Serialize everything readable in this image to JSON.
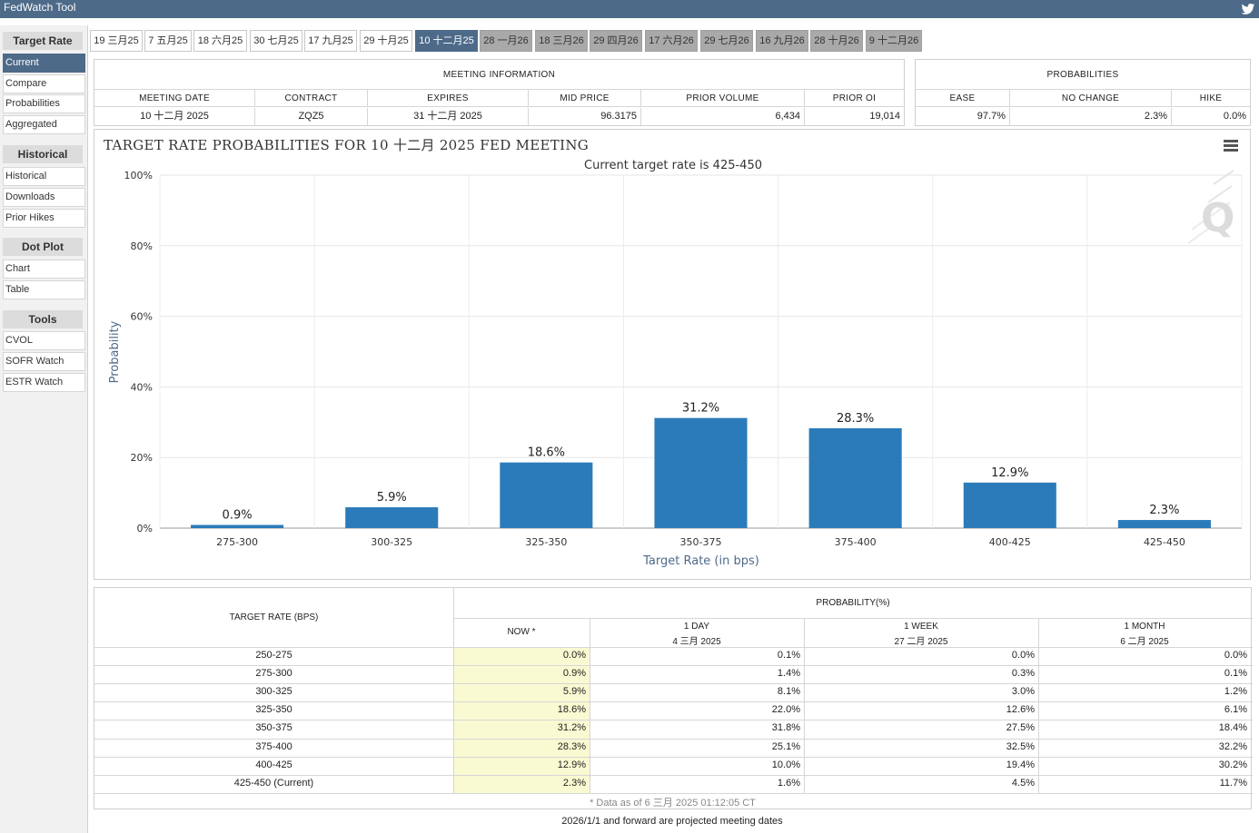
{
  "app": {
    "title": "FedWatch Tool"
  },
  "sidebar": {
    "groups": [
      {
        "heading": "Target Rate",
        "items": [
          {
            "label": "Current",
            "active": true
          },
          {
            "label": "Compare"
          },
          {
            "label": "Probabilities"
          },
          {
            "label": "Aggregated"
          }
        ]
      },
      {
        "heading": "Historical",
        "items": [
          {
            "label": "Historical"
          },
          {
            "label": "Downloads"
          },
          {
            "label": "Prior Hikes"
          }
        ]
      },
      {
        "heading": "Dot Plot",
        "items": [
          {
            "label": "Chart"
          },
          {
            "label": "Table"
          }
        ]
      },
      {
        "heading": "Tools",
        "items": [
          {
            "label": "CVOL"
          },
          {
            "label": "SOFR Watch"
          },
          {
            "label": "ESTR Watch"
          }
        ]
      }
    ]
  },
  "tabs": [
    {
      "label": "19 三月25",
      "state": "past"
    },
    {
      "label": "7 五月25",
      "state": "past"
    },
    {
      "label": "18 六月25",
      "state": "past"
    },
    {
      "label": "30 七月25",
      "state": "past"
    },
    {
      "label": "17 九月25",
      "state": "past"
    },
    {
      "label": "29 十月25",
      "state": "past"
    },
    {
      "label": "10 十二月25",
      "state": "active"
    },
    {
      "label": "28 一月26",
      "state": "future"
    },
    {
      "label": "18 三月26",
      "state": "future"
    },
    {
      "label": "29 四月26",
      "state": "future"
    },
    {
      "label": "17 六月26",
      "state": "future"
    },
    {
      "label": "29 七月26",
      "state": "future"
    },
    {
      "label": "16 九月26",
      "state": "future"
    },
    {
      "label": "28 十月26",
      "state": "future"
    },
    {
      "label": "9 十二月26",
      "state": "future"
    }
  ],
  "meeting_info": {
    "title": "MEETING INFORMATION",
    "headers": [
      "MEETING DATE",
      "CONTRACT",
      "EXPIRES",
      "MID PRICE",
      "PRIOR VOLUME",
      "PRIOR OI"
    ],
    "values": [
      "10 十二月 2025",
      "ZQZ5",
      "31 十二月 2025",
      "96.3175",
      "6,434",
      "19,014"
    ]
  },
  "probabilities_box": {
    "title": "PROBABILITIES",
    "headers": [
      "EASE",
      "NO CHANGE",
      "HIKE"
    ],
    "values": [
      "97.7%",
      "2.3%",
      "0.0%"
    ]
  },
  "chart_data": {
    "type": "bar",
    "title": "TARGET RATE PROBABILITIES FOR 10 十二月 2025 FED MEETING",
    "subtitle": "Current target rate is 425-450",
    "xlabel": "Target Rate (in bps)",
    "ylabel": "Probability",
    "categories": [
      "275-300",
      "300-325",
      "325-350",
      "350-375",
      "375-400",
      "400-425",
      "425-450"
    ],
    "values": [
      0.9,
      5.9,
      18.6,
      31.2,
      28.3,
      12.9,
      2.3
    ],
    "data_labels": [
      "0.9%",
      "5.9%",
      "18.6%",
      "31.2%",
      "28.3%",
      "12.9%",
      "2.3%"
    ],
    "yticks": [
      "0%",
      "20%",
      "40%",
      "60%",
      "80%",
      "100%"
    ],
    "ylim": [
      0,
      100
    ],
    "bar_color": "#2b7bba",
    "grid": true,
    "legend": "none"
  },
  "prob_table": {
    "rate_header": "TARGET RATE (BPS)",
    "group_header": "PROBABILITY(%)",
    "columns": [
      {
        "line1": "NOW *",
        "line2": ""
      },
      {
        "line1": "1 DAY",
        "line2": "4 三月 2025"
      },
      {
        "line1": "1 WEEK",
        "line2": "27 二月 2025"
      },
      {
        "line1": "1 MONTH",
        "line2": "6 二月 2025"
      }
    ],
    "rows": [
      {
        "rate": "250-275",
        "values": [
          "0.0%",
          "0.1%",
          "0.0%",
          "0.0%"
        ]
      },
      {
        "rate": "275-300",
        "values": [
          "0.9%",
          "1.4%",
          "0.3%",
          "0.1%"
        ]
      },
      {
        "rate": "300-325",
        "values": [
          "5.9%",
          "8.1%",
          "3.0%",
          "1.2%"
        ]
      },
      {
        "rate": "325-350",
        "values": [
          "18.6%",
          "22.0%",
          "12.6%",
          "6.1%"
        ]
      },
      {
        "rate": "350-375",
        "values": [
          "31.2%",
          "31.8%",
          "27.5%",
          "18.4%"
        ]
      },
      {
        "rate": "375-400",
        "values": [
          "28.3%",
          "25.1%",
          "32.5%",
          "32.2%"
        ]
      },
      {
        "rate": "400-425",
        "values": [
          "12.9%",
          "10.0%",
          "19.4%",
          "30.2%"
        ]
      },
      {
        "rate": "425-450 (Current)",
        "values": [
          "2.3%",
          "1.6%",
          "4.5%",
          "11.7%"
        ]
      }
    ],
    "footnote": "* Data as of 6 三月 2025 01:12:05 CT"
  },
  "bottom_note": "2026/1/1 and forward are projected meeting dates",
  "icons": {
    "twitter": "twitter-icon",
    "menu": "menu-icon",
    "watermark": "q-logo"
  },
  "colors": {
    "brand": "#4e6a89",
    "bar": "#2b7bba",
    "now_highlight": "#fafad2"
  }
}
